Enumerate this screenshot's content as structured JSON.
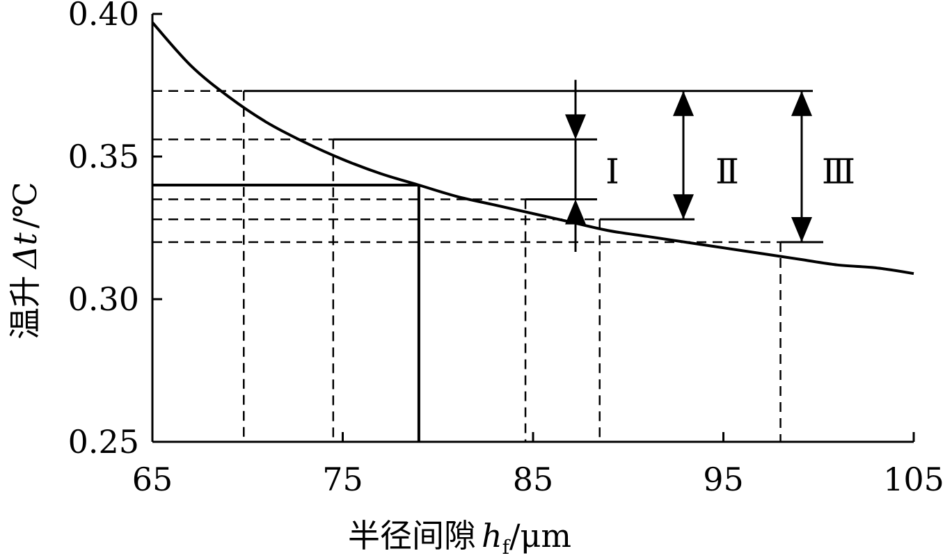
{
  "chart_data": {
    "type": "line",
    "xlabel": {
      "text": "半径间隙",
      "var": "h",
      "sub": "f",
      "unit": "/μm"
    },
    "ylabel": {
      "text": "温升",
      "var": "Δt",
      "unit": "/℃"
    },
    "xlim": [
      65,
      105
    ],
    "ylim": [
      0.25,
      0.4
    ],
    "x_ticks": [
      "65",
      "75",
      "85",
      "95",
      "105"
    ],
    "y_ticks": [
      "0.25",
      "0.30",
      "0.35",
      "0.40"
    ],
    "grid": false,
    "series": [
      {
        "x": [
          65,
          67,
          69,
          71,
          73,
          75,
          77,
          79,
          81,
          83,
          85,
          87,
          89,
          91,
          93,
          95,
          97,
          99,
          101,
          103,
          105
        ],
        "y": [
          0.397,
          0.382,
          0.371,
          0.362,
          0.355,
          0.349,
          0.344,
          0.34,
          0.336,
          0.333,
          0.33,
          0.327,
          0.324,
          0.322,
          0.32,
          0.318,
          0.316,
          0.314,
          0.312,
          0.311,
          0.309
        ]
      }
    ],
    "annotations": {
      "selected_point": {
        "x": 79,
        "y": 0.34
      },
      "dashed_points": [
        {
          "x": 69.8,
          "y": 0.373
        },
        {
          "x": 74.5,
          "y": 0.356
        },
        {
          "x": 84.6,
          "y": 0.335
        },
        {
          "x": 88.5,
          "y": 0.328
        },
        {
          "x": 98.0,
          "y": 0.32
        }
      ],
      "ranges": [
        {
          "label": "Ⅰ",
          "from": 0.356,
          "to": 0.335
        },
        {
          "label": "Ⅱ",
          "from": 0.373,
          "to": 0.328
        },
        {
          "label": "Ⅲ",
          "from": 0.373,
          "to": 0.32
        }
      ]
    }
  }
}
